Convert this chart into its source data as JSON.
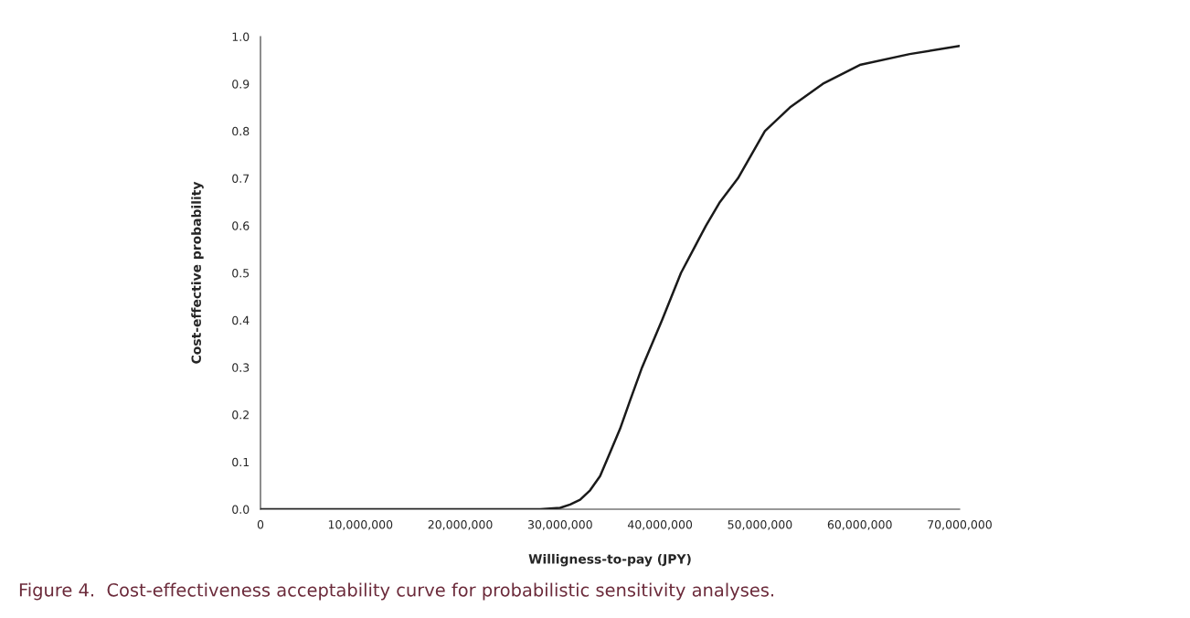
{
  "chart_data": {
    "type": "line",
    "xlabel": "Willigness-to-pay (JPY)",
    "ylabel": "Cost-effective probability",
    "x": [
      0,
      10000000,
      20000000,
      28000000,
      30000000,
      31000000,
      32000000,
      33000000,
      34000000,
      35000000,
      36000000,
      37000000,
      38200000,
      40200000,
      42100000,
      44600000,
      46000000,
      47800000,
      50500000,
      53000000,
      56300000,
      60000000,
      65000000,
      70000000
    ],
    "series": [
      {
        "color": "#1a1a1a",
        "values": [
          0,
          0,
          0,
          0,
          0.003,
          0.01,
          0.02,
          0.04,
          0.07,
          0.12,
          0.17,
          0.23,
          0.3,
          0.4,
          0.5,
          0.6,
          0.65,
          0.7,
          0.8,
          0.85,
          0.9,
          0.94,
          0.963,
          0.98
        ]
      }
    ],
    "xlim": [
      0,
      70000000
    ],
    "ylim": [
      0,
      1.0
    ],
    "xticks": [
      {
        "value": 0,
        "label": "0"
      },
      {
        "value": 10000000,
        "label": "10,000,000"
      },
      {
        "value": 20000000,
        "label": "20,000,000"
      },
      {
        "value": 30000000,
        "label": "30,000,000"
      },
      {
        "value": 40000000,
        "label": "40,000,000"
      },
      {
        "value": 50000000,
        "label": "50,000,000"
      },
      {
        "value": 60000000,
        "label": "60,000,000"
      },
      {
        "value": 70000000,
        "label": "70,000,000"
      }
    ],
    "yticks": [
      {
        "value": 0,
        "label": "0.0"
      },
      {
        "value": 0.1,
        "label": "0.1"
      },
      {
        "value": 0.2,
        "label": "0.2"
      },
      {
        "value": 0.3,
        "label": "0.3"
      },
      {
        "value": 0.4,
        "label": "0.4"
      },
      {
        "value": 0.5,
        "label": "0.5"
      },
      {
        "value": 0.6,
        "label": "0.6"
      },
      {
        "value": 0.7,
        "label": "0.7"
      },
      {
        "value": 0.8,
        "label": "0.8"
      },
      {
        "value": 0.9,
        "label": "0.9"
      },
      {
        "value": 1.0,
        "label": "1.0"
      }
    ],
    "grid": false,
    "legend": false,
    "marker": "none",
    "line_style": "solid",
    "annotations": [
      "Figure 4.  Cost-effectiveness acceptability curve for probabilistic sensitivity analyses."
    ]
  }
}
